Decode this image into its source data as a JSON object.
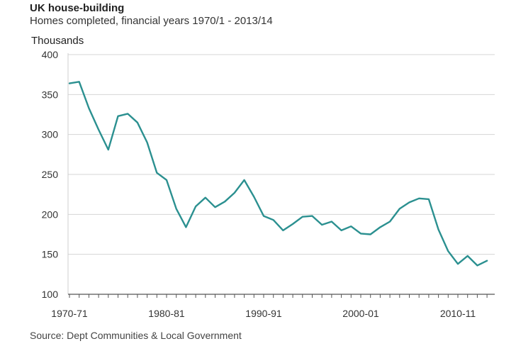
{
  "header": {
    "title": "UK house-building",
    "subtitle": "Homes completed, financial years 1970/1 - 2013/14"
  },
  "footer": {
    "source": "Source: Dept Communities & Local Government"
  },
  "colors": {
    "line": "#2b9090",
    "grid": "#d4d4d4",
    "axis": "#555555"
  },
  "chart_data": {
    "type": "line",
    "title": "UK house-building",
    "subtitle": "Homes completed, financial years 1970/1 - 2013/14",
    "xlabel": "",
    "ylabel": "Thousands",
    "ylim": [
      100,
      400
    ],
    "yticks": [
      100,
      150,
      200,
      250,
      300,
      350,
      400
    ],
    "grid": true,
    "legend": "none",
    "x_tick_labels": [
      {
        "label": "1970-71",
        "index": 0
      },
      {
        "label": "1980-81",
        "index": 10
      },
      {
        "label": "1990-91",
        "index": 20
      },
      {
        "label": "2000-01",
        "index": 30
      },
      {
        "label": "2010-11",
        "index": 40
      }
    ],
    "x": [
      "1970-71",
      "1971-72",
      "1972-73",
      "1973-74",
      "1974-75",
      "1975-76",
      "1976-77",
      "1977-78",
      "1978-79",
      "1979-80",
      "1980-81",
      "1981-82",
      "1982-83",
      "1983-84",
      "1984-85",
      "1985-86",
      "1986-87",
      "1987-88",
      "1988-89",
      "1989-90",
      "1990-91",
      "1991-92",
      "1992-93",
      "1993-94",
      "1994-95",
      "1995-96",
      "1996-97",
      "1997-98",
      "1998-99",
      "1999-2000",
      "2000-01",
      "2001-02",
      "2002-03",
      "2003-04",
      "2004-05",
      "2005-06",
      "2006-07",
      "2007-08",
      "2008-09",
      "2009-10",
      "2010-11",
      "2011-12",
      "2012-13",
      "2013-14"
    ],
    "series": [
      {
        "values": [
          364,
          366,
          333,
          306,
          281,
          323,
          326,
          315,
          290,
          252,
          243,
          207,
          184,
          210,
          221,
          209,
          216,
          227,
          243,
          222,
          198,
          193,
          180,
          188,
          197,
          198,
          187,
          191,
          180,
          185,
          176,
          175,
          184,
          191,
          207,
          215,
          220,
          219,
          181,
          154,
          138,
          148,
          136,
          142
        ]
      }
    ],
    "note": "Source: Dept Communities & Local Government"
  }
}
